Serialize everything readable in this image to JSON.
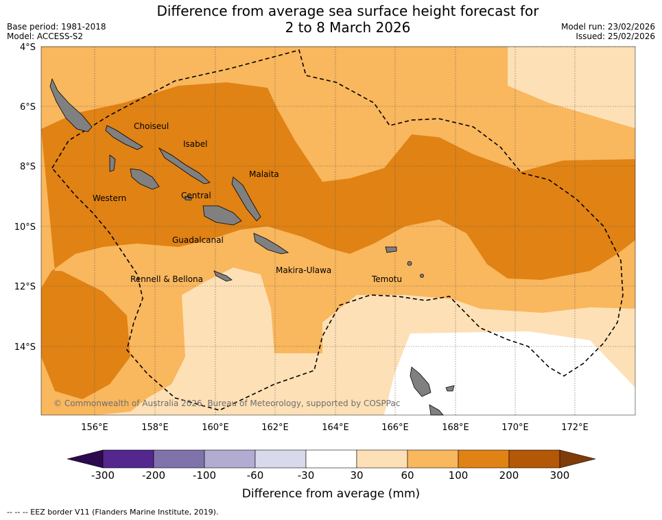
{
  "title_line1": "Difference from average sea surface height forecast for",
  "title_line2": "2 to 8 March 2026",
  "meta_left": [
    "Base period: 1981-2018",
    "Model: ACCESS-S2"
  ],
  "meta_right": [
    "Model run: 23/02/2026",
    "Issued: 25/02/2026"
  ],
  "lat_labels": [
    "4°S",
    "6°S",
    "8°S",
    "10°S",
    "12°S",
    "14°S"
  ],
  "lon_labels": [
    "156°E",
    "158°E",
    "160°E",
    "162°E",
    "164°E",
    "166°E",
    "168°E",
    "170°E",
    "172°E"
  ],
  "places": {
    "choiseul": "Choiseul",
    "isabel": "Isabel",
    "malaita": "Malaita",
    "western": "Western",
    "central": "Central",
    "guadalcanal": "Guadalcanal",
    "rennell": "Rennell & Bellona",
    "makira": "Makira-Ulawa",
    "temotu": "Temotu"
  },
  "credit": "© Commonwealth of Australia 2026, Bureau of Meteorology, supported by COSPPac",
  "colorbar": {
    "title": "Difference from average (mm)",
    "ticks": [
      "-300",
      "-200",
      "-100",
      "-60",
      "-30",
      "30",
      "60",
      "100",
      "200",
      "300"
    ],
    "colors": [
      "#2d0a4e",
      "#54278f",
      "#8073ac",
      "#b2abd2",
      "#d8daeb",
      "#ffffff",
      "#fee0b6",
      "#f9b75e",
      "#e08214",
      "#b35806",
      "#7f3b08"
    ]
  },
  "footnote": "--  --  -- EEZ border V11 (Flanders Marine Institute, 2019)."
}
